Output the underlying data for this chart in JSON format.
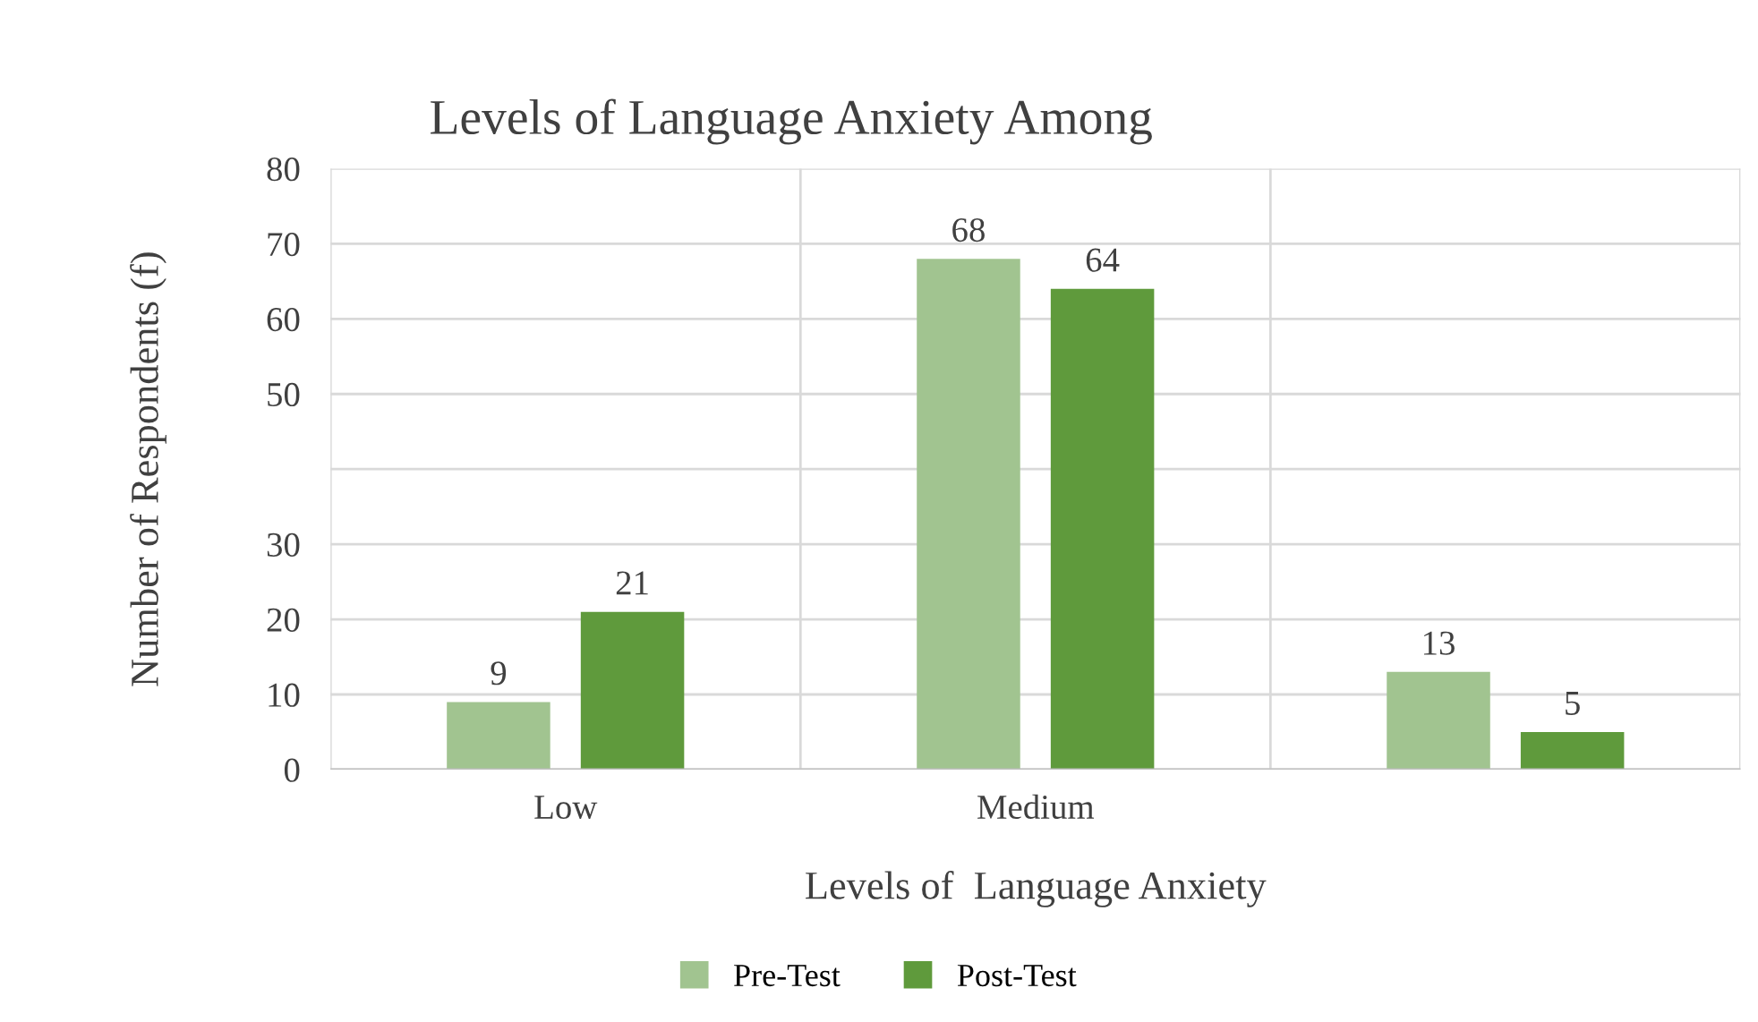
{
  "chart_data": {
    "type": "bar",
    "title": "Levels of Language Anxiety Among",
    "xlabel": "Levels of  Language Anxiety",
    "ylabel": "Number of Respondents (f)",
    "categories": [
      "Low",
      "Medium",
      null
    ],
    "series": [
      {
        "name": "Pre-Test",
        "color": "#a1c490",
        "values": [
          9,
          68,
          13
        ]
      },
      {
        "name": "Post-Test",
        "color": "#5f9a3c",
        "values": [
          21,
          64,
          5
        ]
      }
    ],
    "ylim": [
      0,
      80
    ],
    "yticks": [
      {
        "value": 0,
        "label": "0"
      },
      10,
      20,
      30,
      {
        "value": 40,
        "label": null
      },
      50,
      60,
      70,
      80
    ],
    "grid": true,
    "data_labels": true,
    "legend": "bottom"
  }
}
